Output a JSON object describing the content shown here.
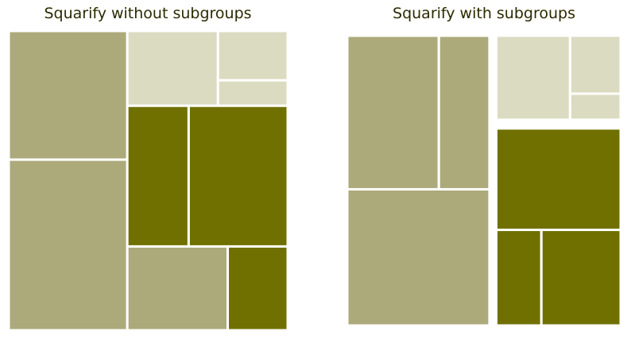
{
  "colors": {
    "light": "#dbdbc1",
    "medium": "#acaa7b",
    "dark": "#707000",
    "title": "#2a2a00",
    "gap": "#ffffff"
  },
  "chart_data": [
    {
      "type": "treemap",
      "title": "Squarify without subgroups",
      "grid": false,
      "rectangles": [
        {
          "group": "medium",
          "x0": 0.0,
          "y0": 0.0,
          "x1": 0.425,
          "y1": 0.43
        },
        {
          "group": "medium",
          "x0": 0.0,
          "y0": 0.43,
          "x1": 0.425,
          "y1": 1.0
        },
        {
          "group": "light",
          "x0": 0.425,
          "y0": 0.0,
          "x1": 0.75,
          "y1": 0.25
        },
        {
          "group": "light",
          "x0": 0.75,
          "y0": 0.0,
          "x1": 1.0,
          "y1": 0.165
        },
        {
          "group": "light",
          "x0": 0.75,
          "y0": 0.165,
          "x1": 1.0,
          "y1": 0.25
        },
        {
          "group": "dark",
          "x0": 0.425,
          "y0": 0.25,
          "x1": 0.645,
          "y1": 0.72
        },
        {
          "group": "dark",
          "x0": 0.645,
          "y0": 0.25,
          "x1": 1.0,
          "y1": 0.72
        },
        {
          "group": "medium",
          "x0": 0.425,
          "y0": 0.72,
          "x1": 0.785,
          "y1": 1.0
        },
        {
          "group": "dark",
          "x0": 0.785,
          "y0": 0.72,
          "x1": 1.0,
          "y1": 1.0
        }
      ]
    },
    {
      "type": "treemap",
      "title": "Squarify with subgroups",
      "grid": false,
      "rectangles": [
        {
          "group": "medium",
          "x0": 0.0,
          "y0": 0.0,
          "x1": 0.335,
          "y1": 0.53
        },
        {
          "group": "medium",
          "x0": 0.335,
          "y0": 0.0,
          "x1": 0.52,
          "y1": 0.53
        },
        {
          "group": "medium",
          "x0": 0.0,
          "y0": 0.53,
          "x1": 0.52,
          "y1": 1.0
        },
        {
          "group": "light",
          "x0": 0.545,
          "y0": 0.0,
          "x1": 0.815,
          "y1": 0.29
        },
        {
          "group": "light",
          "x0": 0.815,
          "y0": 0.0,
          "x1": 1.0,
          "y1": 0.2
        },
        {
          "group": "light",
          "x0": 0.815,
          "y0": 0.2,
          "x1": 1.0,
          "y1": 0.29
        },
        {
          "group": "dark",
          "x0": 0.545,
          "y0": 0.32,
          "x1": 1.0,
          "y1": 0.67
        },
        {
          "group": "dark",
          "x0": 0.545,
          "y0": 0.67,
          "x1": 0.71,
          "y1": 1.0
        },
        {
          "group": "dark",
          "x0": 0.71,
          "y0": 0.67,
          "x1": 1.0,
          "y1": 1.0
        }
      ]
    }
  ]
}
